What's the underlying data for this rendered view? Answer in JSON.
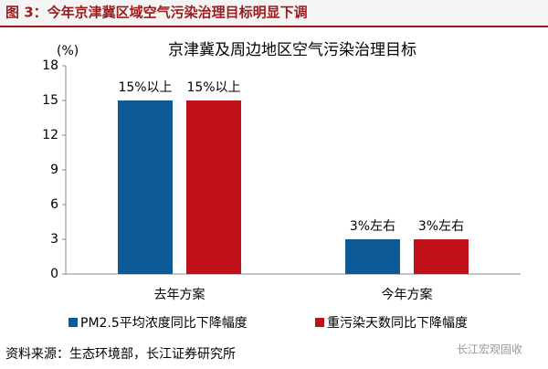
{
  "header": {
    "title": "图 3：今年京津冀区域空气污染治理目标明显下调"
  },
  "source": "资料来源：生态环境部，长江证券研究所",
  "watermark": "长江宏观固收",
  "chart_data": {
    "type": "bar",
    "title": "京津冀及周边地区空气污染治理目标",
    "ylabel": "(%)",
    "categories": [
      "去年方案",
      "今年方案"
    ],
    "series": [
      {
        "name": "PM2.5平均浓度同比下降幅度",
        "color": "#0e5a96",
        "values": [
          15,
          3
        ],
        "value_labels": [
          "15%以上",
          "3%左右"
        ]
      },
      {
        "name": "重污染天数同比下降幅度",
        "color": "#c0111a",
        "values": [
          15,
          3
        ],
        "value_labels": [
          "15%以上",
          "3%左右"
        ]
      }
    ],
    "ylim": [
      0,
      18
    ],
    "yticks": [
      0,
      3,
      6,
      9,
      12,
      15,
      18
    ],
    "grid": false
  }
}
